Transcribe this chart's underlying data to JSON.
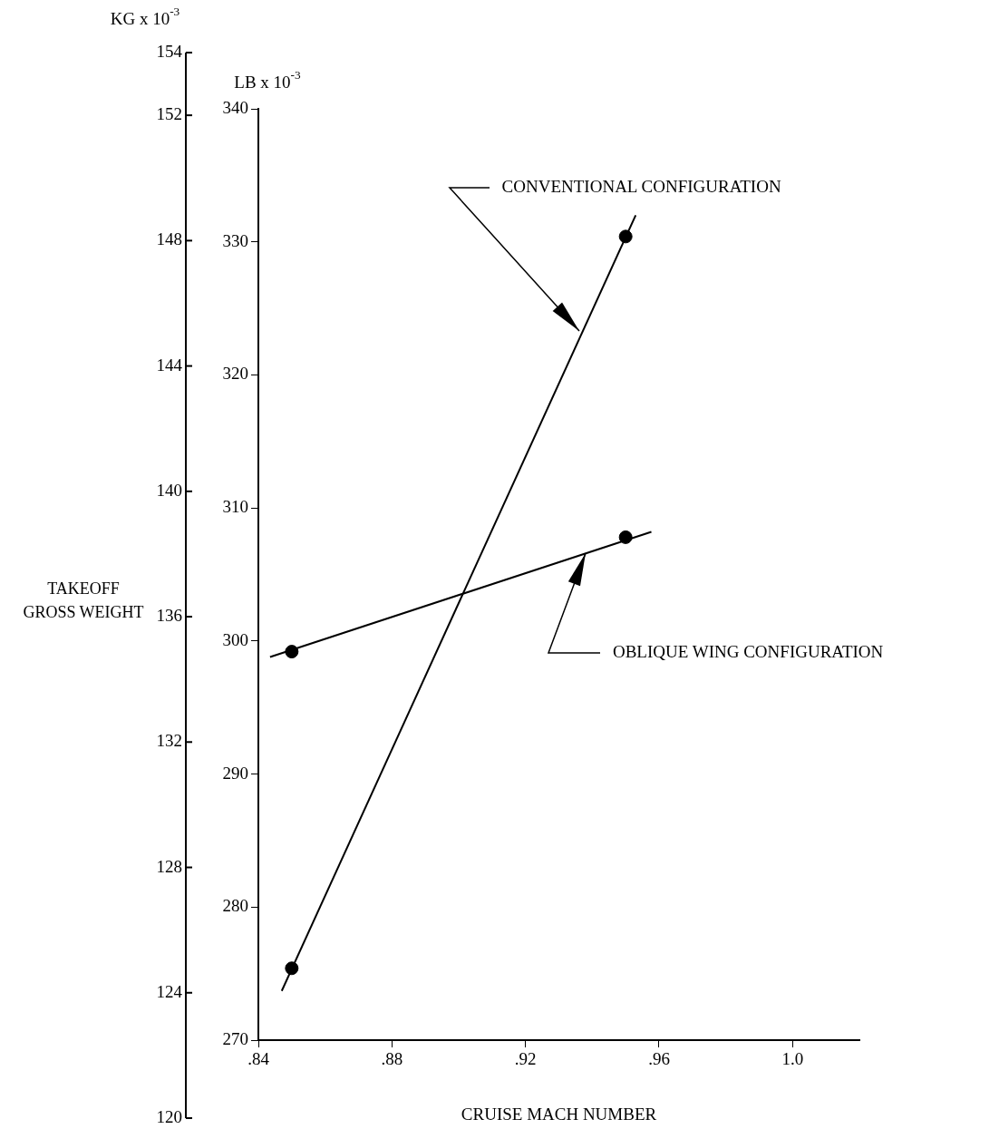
{
  "chart_data": {
    "type": "line",
    "xlabel": "CRUISE MACH NUMBER",
    "ylabel": "LB x 10$^{-3}$",
    "y2label": "KG x 10$^{-3}$",
    "xlim": [
      0.84,
      1.02
    ],
    "xticks": [
      {
        "value": 0.84,
        "label": ".84"
      },
      {
        "value": 0.88,
        "label": ".88"
      },
      {
        "value": 0.92,
        "label": ".92"
      },
      {
        "value": 0.96,
        "label": ".96"
      },
      {
        "value": 1.0,
        "label": "1.0"
      }
    ],
    "ylim": [
      270,
      340
    ],
    "yticks": [
      270,
      280,
      290,
      300,
      310,
      320,
      330,
      340
    ],
    "y2lim": [
      120,
      154
    ],
    "y2ticks": [
      120,
      124,
      128,
      132,
      136,
      140,
      144,
      148,
      152,
      154
    ],
    "grid": false,
    "legend": false,
    "series": [
      {
        "color": "#000000",
        "marker": "none",
        "x": [
          0.847,
          0.953
        ],
        "values": [
          273.7,
          332.0
        ]
      },
      {
        "type": "scatter",
        "color": "#000000",
        "marker": "circle",
        "x": [
          0.85,
          0.95
        ],
        "values": [
          275.4,
          330.4
        ]
      },
      {
        "color": "#000000",
        "marker": "none",
        "x": [
          0.8435,
          0.9577
        ],
        "values": [
          298.8,
          308.2
        ]
      },
      {
        "type": "scatter",
        "color": "#000000",
        "marker": "circle",
        "x": [
          0.85,
          0.95
        ],
        "values": [
          299.2,
          307.8
        ]
      }
    ],
    "annotations": [
      "TAKEOFF GROSS WEIGHT",
      {
        "text": "CONVENTIONAL CONFIGURATION",
        "x": 0.936,
        "y": 323.3
      },
      {
        "text": "OBLIQUE WING CONFIGURATION",
        "x": 0.938,
        "y": 306.6
      }
    ]
  }
}
